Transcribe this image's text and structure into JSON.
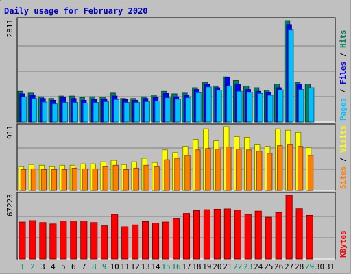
{
  "chart_data": {
    "type": "bar",
    "title": "Daily usage for February 2020",
    "categories": [
      "1",
      "2",
      "3",
      "4",
      "5",
      "6",
      "7",
      "8",
      "9",
      "10",
      "11",
      "12",
      "13",
      "14",
      "15",
      "16",
      "17",
      "18",
      "19",
      "20",
      "21",
      "22",
      "23",
      "24",
      "25",
      "26",
      "27",
      "28",
      "29",
      "30",
      "31"
    ],
    "weekend_days": [
      1,
      2,
      8,
      9,
      15,
      16,
      22,
      23,
      29
    ],
    "panels": [
      {
        "id": "hits-files-pages",
        "ymax_label": "2811",
        "ymax": 2811,
        "axis_label_parts": [
          {
            "text": "Pages",
            "color": "#00c0ff"
          },
          {
            "text": " / ",
            "color": "#000000"
          },
          {
            "text": "Files",
            "color": "#0000ff"
          },
          {
            "text": " / ",
            "color": "#000000"
          },
          {
            "text": "Hits",
            "color": "#00805c"
          }
        ],
        "series": [
          {
            "name": "Hits",
            "color": "#00805c",
            "values": [
              850,
              800,
              700,
              650,
              720,
              720,
              680,
              700,
              690,
              800,
              650,
              650,
              700,
              750,
              850,
              780,
              800,
              950,
              1100,
              1000,
              1250,
              1150,
              1000,
              950,
              880,
              1050,
              2811,
              1100,
              1050,
              null,
              null
            ]
          },
          {
            "name": "Files",
            "color": "#0000ff",
            "values": [
              780,
              750,
              650,
              600,
              680,
              650,
              600,
              630,
              640,
              720,
              620,
              600,
              650,
              680,
              790,
              700,
              750,
              900,
              1050,
              950,
              1230,
              1050,
              900,
              850,
              820,
              950,
              2700,
              1050,
              null,
              null,
              null
            ]
          },
          {
            "name": "Pages",
            "color": "#00c0ff",
            "values": [
              690,
              650,
              550,
              500,
              540,
              540,
              520,
              540,
              560,
              620,
              540,
              540,
              560,
              580,
              670,
              630,
              670,
              810,
              970,
              880,
              1000,
              850,
              820,
              790,
              740,
              890,
              2550,
              900,
              950,
              null,
              null
            ]
          }
        ]
      },
      {
        "id": "visits-sites",
        "ymax_label": "911",
        "ymax": 911,
        "axis_label_parts": [
          {
            "text": "Sites",
            "color": "#ff8000"
          },
          {
            "text": " / ",
            "color": "#000000"
          },
          {
            "text": "Visits",
            "color": "#ffff00"
          }
        ],
        "series": [
          {
            "name": "Visits",
            "color": "#ffff00",
            "values": [
              340,
              370,
              360,
              340,
              360,
              360,
              380,
              380,
              410,
              430,
              370,
              410,
              460,
              400,
              580,
              540,
              630,
              730,
              880,
              710,
              911,
              770,
              760,
              660,
              630,
              880,
              860,
              830,
              610,
              null,
              null
            ]
          },
          {
            "name": "Sites",
            "color": "#ff8000",
            "values": [
              300,
              310,
              300,
              300,
              300,
              320,
              310,
              310,
              340,
              360,
              300,
              320,
              360,
              340,
              440,
              460,
              500,
              580,
              600,
              590,
              620,
              590,
              580,
              560,
              530,
              640,
              660,
              630,
              500,
              null,
              null
            ]
          }
        ]
      },
      {
        "id": "kbytes",
        "ymax_label": "67223",
        "ymax": 67223,
        "axis_label_parts": [
          {
            "text": "KBytes",
            "color": "#ff0000"
          }
        ],
        "series": [
          {
            "name": "KBytes",
            "color": "#ff0000",
            "values": [
              39000,
              40500,
              38500,
              37000,
              40000,
              40000,
              40000,
              38500,
              35000,
              47000,
              34000,
              36000,
              39500,
              38000,
              39000,
              43000,
              48000,
              51000,
              52000,
              52500,
              52800,
              51500,
              47000,
              50500,
              44000,
              49000,
              67223,
              53000,
              46000,
              null,
              null
            ]
          }
        ]
      }
    ]
  }
}
